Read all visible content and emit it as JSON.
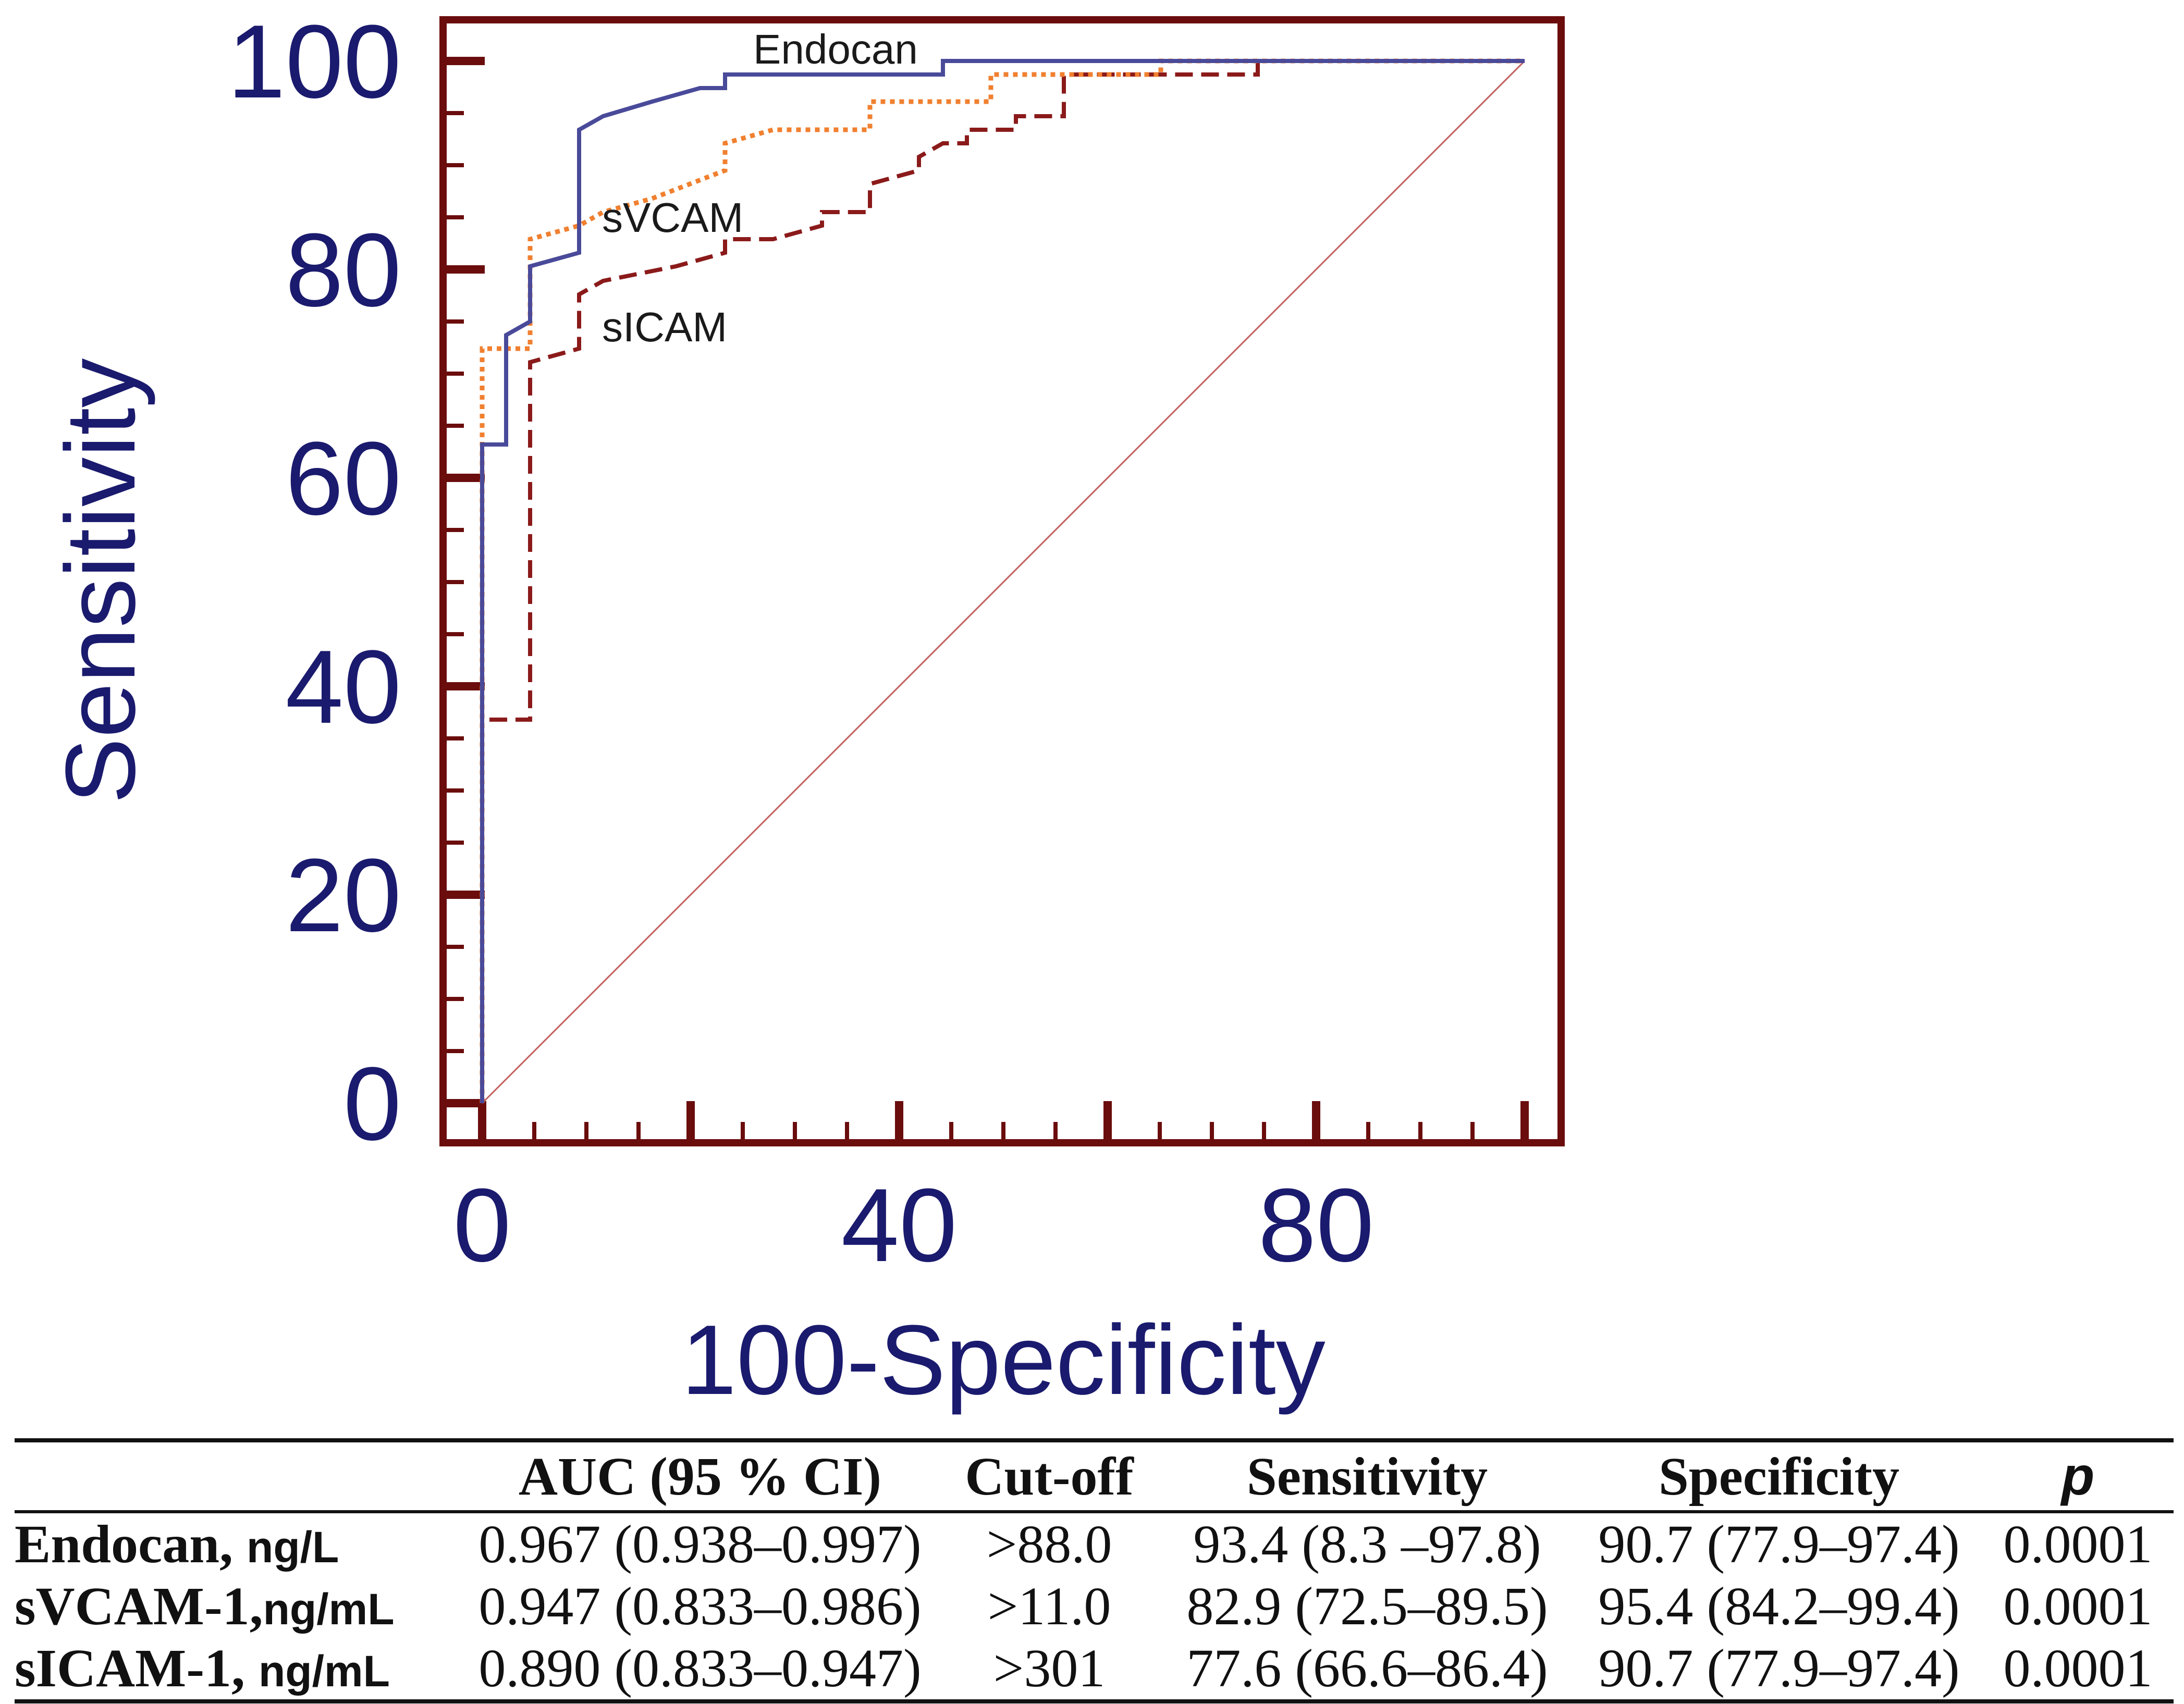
{
  "chart_data": {
    "type": "line",
    "subtype": "roc",
    "xlabel": "100-Specificity",
    "ylabel": "Sensitivity",
    "xlim": [
      0,
      100
    ],
    "ylim": [
      0,
      100
    ],
    "x_ticks": [
      0,
      40,
      80
    ],
    "y_ticks": [
      0,
      20,
      40,
      60,
      80,
      100
    ],
    "x_minor_ticks": [
      0,
      5,
      10,
      15,
      20,
      25,
      30,
      35,
      40,
      45,
      50,
      55,
      60,
      65,
      70,
      75,
      80,
      85,
      90,
      95,
      100
    ],
    "y_minor_ticks": [
      0,
      5,
      10,
      15,
      20,
      25,
      30,
      35,
      40,
      45,
      50,
      55,
      60,
      65,
      70,
      75,
      80,
      85,
      90,
      95,
      100
    ],
    "reference_line": {
      "name": "reference",
      "x": [
        0,
        100
      ],
      "y": [
        0,
        100
      ],
      "color": "#c06060"
    },
    "series": [
      {
        "name": "Endocan",
        "color": "#4a4a9a",
        "style": "solid",
        "x": [
          0,
          0,
          2.3,
          2.3,
          4.6,
          4.6,
          9.3,
          9.3,
          11.6,
          16.3,
          20.9,
          23.3,
          23.3,
          44.2,
          44.2,
          100
        ],
        "y": [
          0,
          63.2,
          63.2,
          73.7,
          75.0,
          80.3,
          81.6,
          93.4,
          94.7,
          96.1,
          97.4,
          97.4,
          98.7,
          98.7,
          100,
          100
        ]
      },
      {
        "name": "sVCAM",
        "color": "#f08030",
        "style": "dotted",
        "x": [
          0,
          0,
          4.6,
          4.6,
          9.3,
          11.6,
          16.3,
          23.3,
          23.3,
          27.9,
          37.2,
          37.2,
          41.9,
          48.8,
          48.8,
          55.8,
          65.1,
          65.1,
          100
        ],
        "y": [
          0,
          72.4,
          72.4,
          82.9,
          84.2,
          85.5,
          86.8,
          89.5,
          92.1,
          93.4,
          93.4,
          96.1,
          96.1,
          96.1,
          98.7,
          98.7,
          98.7,
          100,
          100
        ]
      },
      {
        "name": "sICAM",
        "color": "#8b1a1a",
        "style": "dashed",
        "x": [
          0,
          0,
          4.6,
          4.6,
          9.3,
          9.3,
          11.6,
          18.6,
          23.3,
          23.3,
          27.9,
          32.6,
          32.6,
          37.2,
          37.2,
          41.9,
          41.9,
          44.2,
          46.5,
          46.5,
          51.2,
          51.2,
          55.8,
          55.8,
          74.4,
          74.4,
          100
        ],
        "y": [
          0,
          36.8,
          36.8,
          71.1,
          72.4,
          77.6,
          78.9,
          80.3,
          81.6,
          82.9,
          82.9,
          84.2,
          85.5,
          85.5,
          88.2,
          89.5,
          90.8,
          92.1,
          92.1,
          93.4,
          93.4,
          94.7,
          94.7,
          98.7,
          98.7,
          100,
          100
        ]
      }
    ]
  },
  "table": {
    "headers": [
      "",
      "AUC (95 % CI)",
      "Cut-off",
      "Sensitivity",
      "Specificity",
      "p"
    ],
    "rows": [
      {
        "marker": "Endocan,",
        "unit": "ng/L",
        "auc": "0.967 (0.938–0.997)",
        "cutoff": ">88.0",
        "sensitivity": "93.4 (8.3 –97.8)",
        "specificity": "90.7 (77.9–97.4)",
        "p": "0.0001"
      },
      {
        "marker": "sVCAM-1,",
        "unit": "ng/mL",
        "auc": "0.947 (0.833–0.986)",
        "cutoff": ">11.0",
        "sensitivity": "82.9 (72.5–89.5)",
        "specificity": "95.4 (84.2–99.4)",
        "p": "0.0001"
      },
      {
        "marker": "sICAM-1,",
        "unit": "ng/mL",
        "auc": "0.890 (0.833–0.947)",
        "cutoff": ">301",
        "sensitivity": "77.6 (66.6–86.4)",
        "specificity": "90.7 (77.9–97.4)",
        "p": "0.0001"
      }
    ]
  }
}
